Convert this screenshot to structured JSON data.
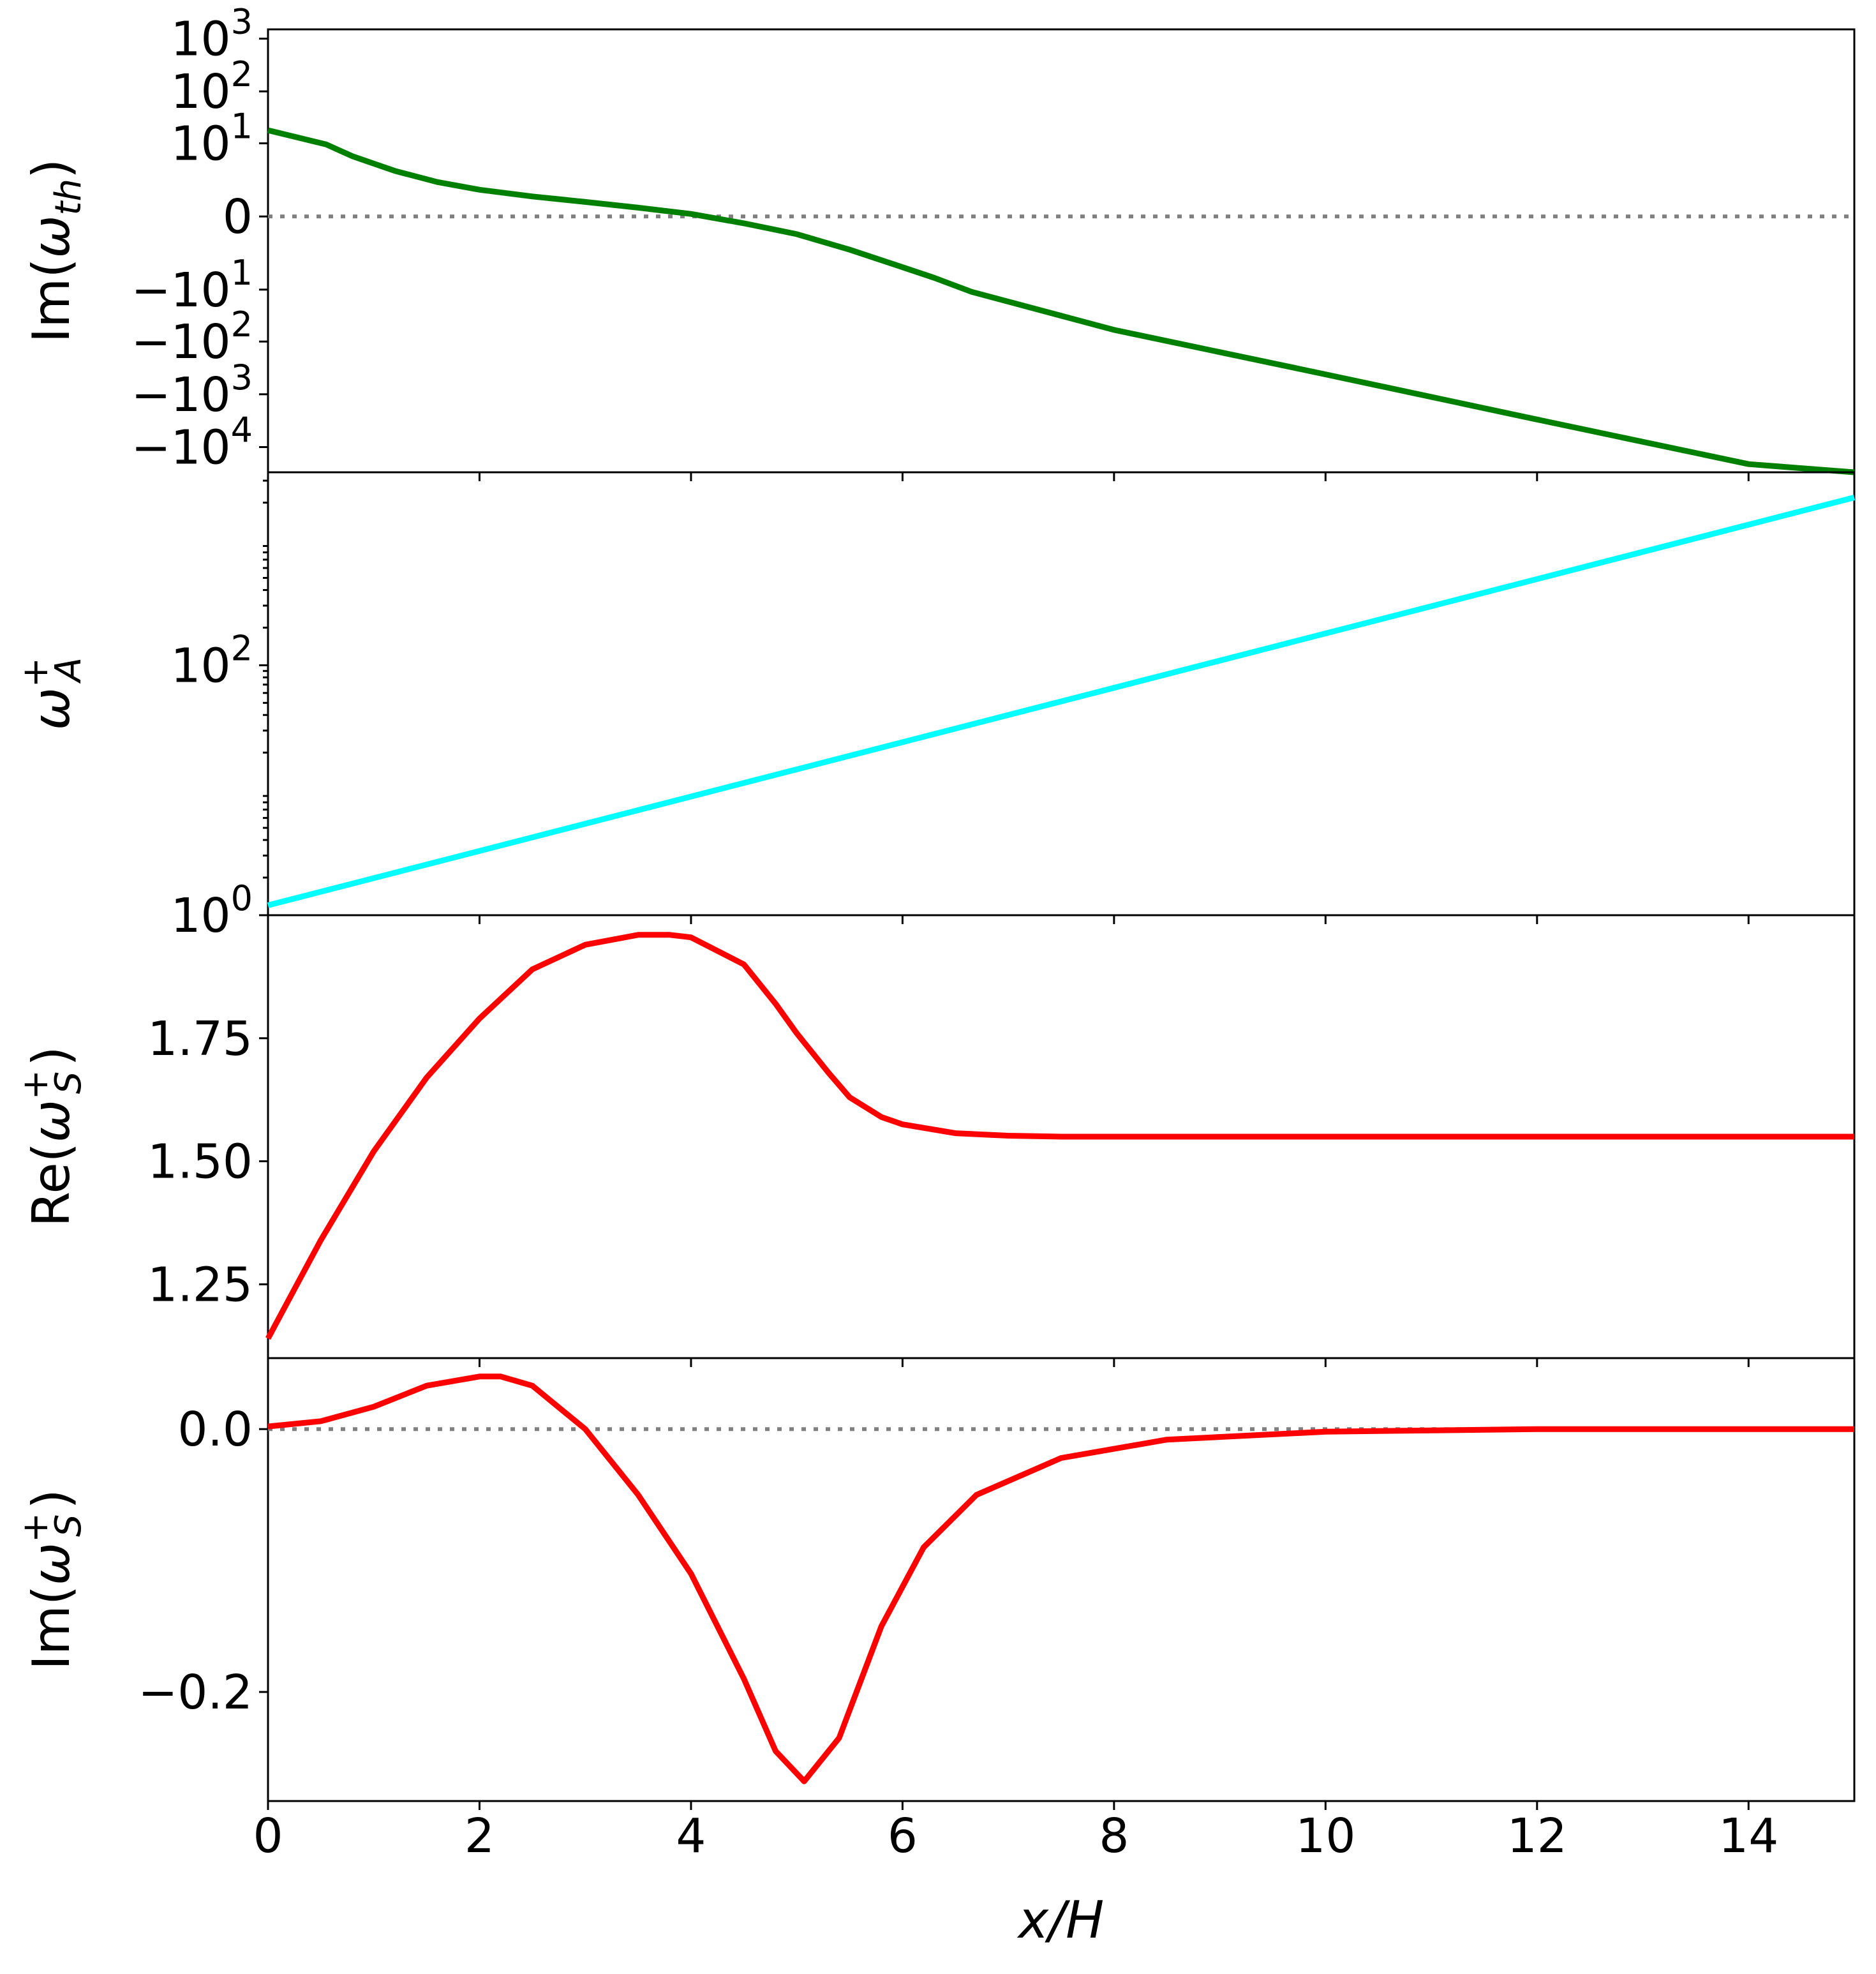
{
  "chart_data": [
    {
      "type": "line",
      "panel": "Im(omega_th)",
      "ylabel": "Im(ω_th)",
      "ylabel_parts": {
        "base": "Im(",
        "sym": "ω",
        "sub": "th",
        "close": ")"
      },
      "yscale": "symlog",
      "ylim": [
        -30000,
        1500
      ],
      "yticks": [
        {
          "value": 1000,
          "label": "10",
          "exp": "3"
        },
        {
          "value": 100,
          "label": "10",
          "exp": "2"
        },
        {
          "value": 10,
          "label": "10",
          "exp": "1"
        },
        {
          "value": 0,
          "label": "0",
          "exp": ""
        },
        {
          "value": -10,
          "label": "−10",
          "exp": "1"
        },
        {
          "value": -100,
          "label": "−10",
          "exp": "2"
        },
        {
          "value": -1000,
          "label": "−10",
          "exp": "3"
        },
        {
          "value": -10000,
          "label": "−10",
          "exp": "4"
        }
      ],
      "reference_line": 0,
      "series": [
        {
          "color": "#008000",
          "x": [
            0,
            0.55,
            0.8,
            1.2,
            1.6,
            2.0,
            2.5,
            3.0,
            3.5,
            4.0,
            4.5,
            5.0,
            5.5,
            6.0,
            6.3,
            6.65,
            8,
            10,
            12,
            14,
            15
          ],
          "y": [
            18,
            9.5,
            5.5,
            2.7,
            1.5,
            0.95,
            0.6,
            0.38,
            0.2,
            0.05,
            -0.15,
            -0.5,
            -1.4,
            -3.5,
            -5.8,
            -11,
            -60,
            -420,
            -3000,
            -21000,
            -30000
          ]
        }
      ]
    },
    {
      "type": "line",
      "panel": "omega_A^+",
      "ylabel": "ω_A^+",
      "ylabel_parts": {
        "sym": "ω",
        "sub": "A",
        "sup": "+"
      },
      "yscale": "log",
      "ylim": [
        1,
        3500
      ],
      "yticks": [
        {
          "value": 100,
          "label": "10",
          "exp": "2"
        },
        {
          "value": 1,
          "label": "10",
          "exp": "0"
        }
      ],
      "series": [
        {
          "color": "#00ffff",
          "x": [
            0,
            15
          ],
          "y": [
            1.2,
            2200
          ]
        }
      ]
    },
    {
      "type": "line",
      "panel": "Re(omega_S^+)",
      "ylabel": "Re(ω_S^+)",
      "ylabel_parts": {
        "base": "Re(",
        "sym": "ω",
        "sub": "S",
        "sup": "+",
        "close": ")"
      },
      "yscale": "linear",
      "ylim": [
        1.1,
        2.0
      ],
      "yticks": [
        {
          "value": 1.75,
          "label": "1.75"
        },
        {
          "value": 1.5,
          "label": "1.50"
        },
        {
          "value": 1.25,
          "label": "1.25"
        }
      ],
      "series": [
        {
          "color": "#ff0000",
          "x": [
            0,
            0.25,
            0.5,
            1.0,
            1.5,
            2.0,
            2.5,
            3.0,
            3.5,
            3.8,
            4.0,
            4.5,
            4.8,
            5.0,
            5.3,
            5.5,
            5.8,
            6.0,
            6.5,
            7.0,
            7.5,
            8.0,
            10,
            12,
            15
          ],
          "y": [
            1.14,
            1.24,
            1.34,
            1.52,
            1.67,
            1.79,
            1.89,
            1.94,
            1.96,
            1.96,
            1.955,
            1.9,
            1.82,
            1.76,
            1.68,
            1.63,
            1.59,
            1.575,
            1.557,
            1.552,
            1.55,
            1.55,
            1.55,
            1.55,
            1.55
          ]
        }
      ]
    },
    {
      "type": "line",
      "panel": "Im(omega_S^+)",
      "ylabel": "Im(ω_S^+)",
      "ylabel_parts": {
        "base": "Im(",
        "sym": "ω",
        "sub": "S",
        "sup": "+",
        "close": ")"
      },
      "xlabel": "x/H",
      "yscale": "linear",
      "ylim": [
        -0.283,
        0.054
      ],
      "xlim": [
        0,
        15
      ],
      "xticks": [
        "0",
        "2",
        "4",
        "6",
        "8",
        "10",
        "12",
        "14"
      ],
      "yticks": [
        {
          "value": 0.0,
          "label": "0.0"
        },
        {
          "value": -0.2,
          "label": "−0.2"
        }
      ],
      "reference_line": 0,
      "series": [
        {
          "color": "#ff0000",
          "x": [
            0,
            0.5,
            1.0,
            1.5,
            2.0,
            2.2,
            2.5,
            3.0,
            3.5,
            4.0,
            4.5,
            4.8,
            5.07,
            5.4,
            5.8,
            6.2,
            6.7,
            7.5,
            8.5,
            10,
            12,
            15
          ],
          "y": [
            0.002,
            0.006,
            0.017,
            0.033,
            0.04,
            0.04,
            0.033,
            0.0,
            -0.05,
            -0.11,
            -0.19,
            -0.245,
            -0.268,
            -0.235,
            -0.15,
            -0.09,
            -0.05,
            -0.022,
            -0.008,
            -0.002,
            0.0,
            0.0
          ]
        }
      ]
    }
  ]
}
